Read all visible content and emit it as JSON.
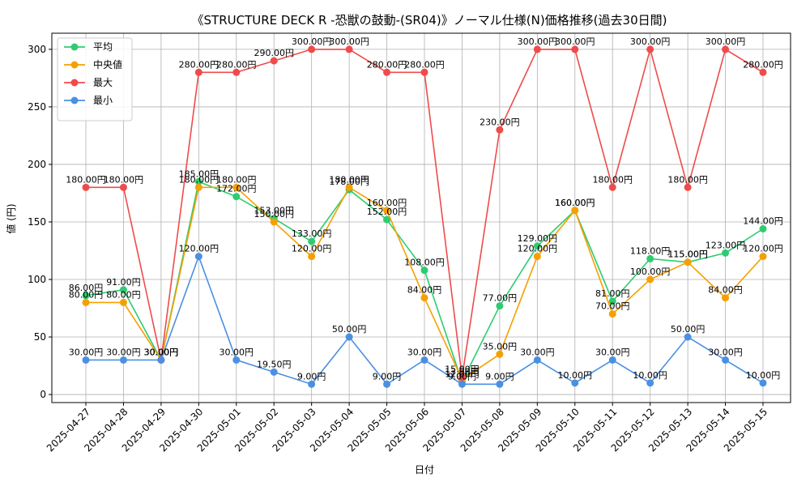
{
  "chart_data": {
    "type": "line",
    "title": "《STRUCTURE DECK R -恐獣の鼓動-(SR04)》ノーマル仕様(N)価格推移(過去30日間)",
    "xlabel": "日付",
    "ylabel": "値 (円)",
    "ylim": [
      -7,
      314
    ],
    "yticks": [
      0,
      50,
      100,
      150,
      200,
      250,
      300
    ],
    "grid": true,
    "legend_position": "top-left",
    "label_suffix": "円",
    "categories": [
      "2025-04-27",
      "2025-04-28",
      "2025-04-29",
      "2025-04-30",
      "2025-05-01",
      "2025-05-02",
      "2025-05-03",
      "2025-05-04",
      "2025-05-05",
      "2025-05-06",
      "2025-05-07",
      "2025-05-08",
      "2025-05-09",
      "2025-05-10",
      "2025-05-11",
      "2025-05-12",
      "2025-05-13",
      "2025-05-14",
      "2025-05-15"
    ],
    "series": [
      {
        "name": "平均",
        "color": "#2ecc71",
        "values": [
          86,
          91,
          30,
          185,
          172,
          153,
          133,
          178,
          152,
          108,
          11,
          77,
          129,
          160,
          81,
          118,
          115,
          123,
          144
        ]
      },
      {
        "name": "中央値",
        "color": "#f5a000",
        "values": [
          80,
          80,
          30,
          180,
          180,
          150,
          120,
          180,
          160,
          84,
          13,
          35,
          120,
          160,
          70,
          100,
          115,
          84,
          120
        ]
      },
      {
        "name": "最大",
        "color": "#ef4b4b",
        "values": [
          180,
          180,
          30,
          280,
          280,
          290,
          300,
          300,
          280,
          280,
          15,
          230,
          300,
          300,
          180,
          300,
          180,
          300,
          280
        ]
      },
      {
        "name": "最小",
        "color": "#4a90e2",
        "values": [
          30,
          30,
          30,
          120,
          30,
          19.5,
          9,
          50,
          9,
          30,
          9,
          9,
          30,
          10,
          30,
          10,
          50,
          30,
          10
        ]
      }
    ]
  }
}
